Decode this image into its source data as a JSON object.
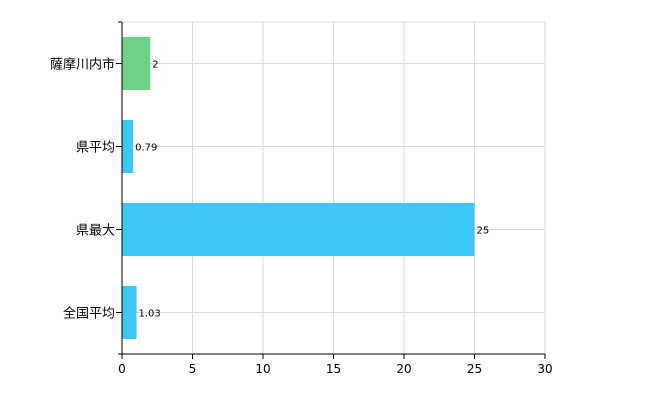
{
  "chart_data": {
    "type": "bar",
    "orientation": "horizontal",
    "categories": [
      "薩摩川内市",
      "県平均",
      "県最大",
      "全国平均"
    ],
    "values": [
      2,
      0.79,
      25,
      1.03
    ],
    "value_labels": [
      "2",
      "0.79",
      "25",
      "1.03"
    ],
    "bar_colors": [
      "#6fd185",
      "#3ec6f6",
      "#3ec6f6",
      "#3ec6f6"
    ],
    "xlim": [
      0,
      30
    ],
    "xticks": [
      0,
      5,
      10,
      15,
      20,
      25,
      30
    ],
    "grid": true,
    "legend": "none"
  }
}
